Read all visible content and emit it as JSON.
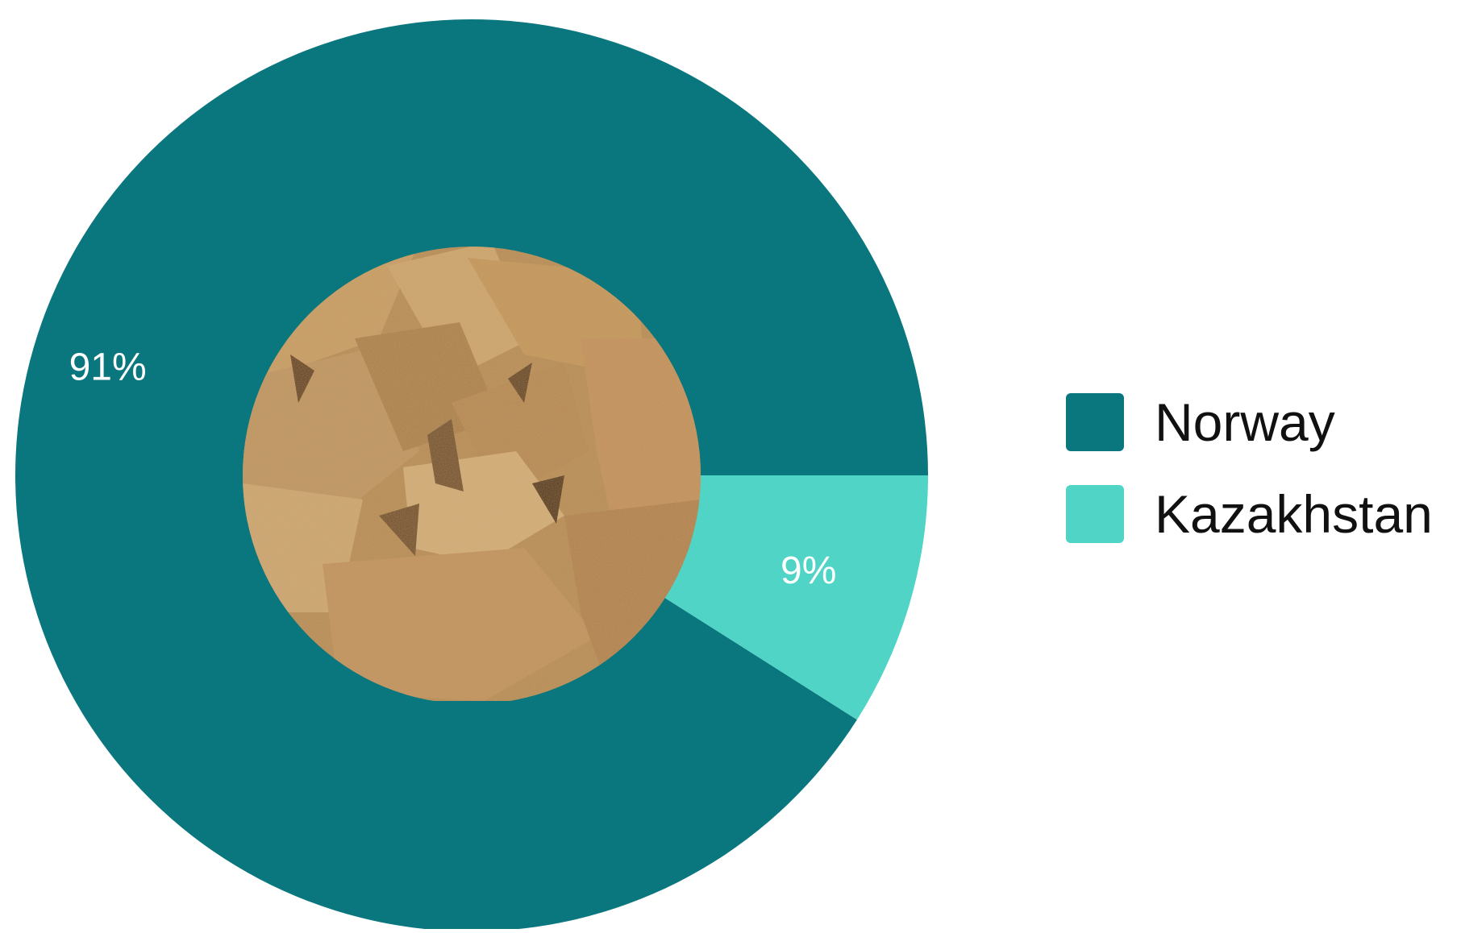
{
  "chart_data": {
    "type": "pie",
    "variant": "donut",
    "categories": [
      "Norway",
      "Kazakhstan"
    ],
    "values": [
      91,
      9
    ],
    "value_labels": [
      "91%",
      "9%"
    ],
    "colors": [
      "#0a767d",
      "#4fd4c6"
    ],
    "start_angle_deg": 0,
    "direction": "counterclockwise",
    "center": {
      "content": "photo",
      "description_icon": "dried-food-chunks-photo"
    },
    "legend": {
      "placement": "right",
      "entries": [
        "Norway",
        "Kazakhstan"
      ]
    }
  }
}
